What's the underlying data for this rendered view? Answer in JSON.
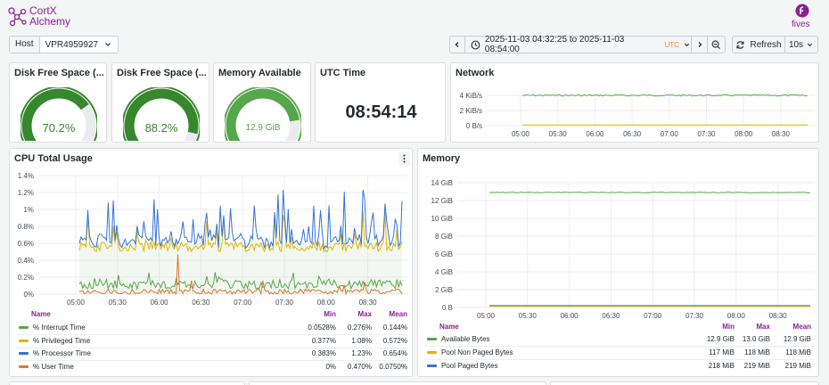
{
  "brand": {
    "left_logo_line1": "CortX",
    "left_logo_line2": "Alchemy",
    "right_logo": "fives",
    "colors": {
      "brand_purple": "#8a2092",
      "accent_orange": "#ff8833"
    }
  },
  "toolbar": {
    "host_label": "Host",
    "host_value": "VPR4959927",
    "time_range_text": "2025-11-03 04:32:25 to 2025-11-03 08:54:00",
    "timezone": "UTC",
    "refresh_label": "Refresh",
    "refresh_interval": "10s",
    "icons": [
      "chevron-left-icon",
      "clock-icon",
      "chevron-right-icon",
      "zoom-out-icon",
      "refresh-icon",
      "chevron-down-icon"
    ]
  },
  "panels": {
    "disk1": {
      "title": "Disk Free Space (...",
      "value": "70.2%",
      "fraction": 0.702,
      "color": "#37872d"
    },
    "disk2": {
      "title": "Disk Free Space (...",
      "value": "88.2%",
      "fraction": 0.882,
      "color": "#37872d"
    },
    "memory_available": {
      "title": "Memory Available",
      "value": "12.9 GiB",
      "fraction": 0.8,
      "color": "#56a64b"
    },
    "utc_time": {
      "title": "UTC Time",
      "value": "08:54:14"
    },
    "network": {
      "title": "Network",
      "y_ticks": [
        "4 KiB/s",
        "2 KiB/s",
        "0 B/s"
      ],
      "x_ticks": [
        "05:00",
        "05:30",
        "06:00",
        "06:30",
        "07:00",
        "07:30",
        "08:00",
        "08:30"
      ]
    },
    "cpu": {
      "title": "CPU Total Usage",
      "y_ticks": [
        "1.4%",
        "1.2%",
        "1%",
        "0.8%",
        "0.6%",
        "0.4%",
        "0.2%",
        "0%"
      ],
      "x_ticks": [
        "05:00",
        "05:30",
        "06:00",
        "06:30",
        "07:00",
        "07:30",
        "08:00",
        "08:30"
      ],
      "legend_headers": {
        "name": "Name",
        "min": "Min",
        "max": "Max",
        "mean": "Mean"
      },
      "legend": [
        {
          "name": "% Interrupt Time",
          "color": "#56a64b",
          "min": "0.0528%",
          "max": "0.276%",
          "mean": "0.144%"
        },
        {
          "name": "% Privileged Time",
          "color": "#e0b400",
          "min": "0.377%",
          "max": "1.08%",
          "mean": "0.572%"
        },
        {
          "name": "% Processor Time",
          "color": "#3274d9",
          "min": "0.383%",
          "max": "1.23%",
          "mean": "0.654%"
        },
        {
          "name": "% User Time",
          "color": "#e0752d",
          "min": "0%",
          "max": "0.470%",
          "mean": "0.0750%"
        }
      ]
    },
    "memory": {
      "title": "Memory",
      "y_ticks": [
        "14 GiB",
        "12 GiB",
        "10 GiB",
        "8 GiB",
        "6 GiB",
        "4 GiB",
        "2 GiB",
        "0 B"
      ],
      "x_ticks": [
        "05:00",
        "05:30",
        "06:00",
        "06:30",
        "07:00",
        "07:30",
        "08:00",
        "08:30"
      ],
      "legend_headers": {
        "name": "Name",
        "min": "Min",
        "max": "Max",
        "mean": "Mean"
      },
      "legend": [
        {
          "name": "Available Bytes",
          "color": "#56a64b",
          "min": "12.9 GiB",
          "max": "13.0 GiB",
          "mean": "12.9 GiB"
        },
        {
          "name": "Pool Non Paged Bytes",
          "color": "#e0b400",
          "min": "117 MiB",
          "max": "118 MiB",
          "mean": "118 MiB"
        },
        {
          "name": "Pool Paged Bytes",
          "color": "#3274d9",
          "min": "218 MiB",
          "max": "219 MiB",
          "mean": "219 MiB"
        }
      ]
    }
  },
  "chart_data": [
    {
      "type": "line",
      "panel": "network",
      "x_range": [
        "05:00",
        "08:30"
      ],
      "ylim": [
        0,
        4
      ],
      "series": [
        {
          "color": "#56a64b",
          "values_kib_s": [
            4.0,
            4.0
          ]
        },
        {
          "color": "#e0b400",
          "values_kib_s": [
            0.1,
            0.1
          ]
        }
      ]
    },
    {
      "type": "line",
      "panel": "cpu",
      "ylim": [
        0,
        1.4
      ],
      "series": [
        {
          "name": "% Interrupt Time",
          "min": 0.0528,
          "max": 0.276,
          "mean": 0.144
        },
        {
          "name": "% Privileged Time",
          "min": 0.377,
          "max": 1.08,
          "mean": 0.572
        },
        {
          "name": "% Processor Time",
          "min": 0.383,
          "max": 1.23,
          "mean": 0.654
        },
        {
          "name": "% User Time",
          "min": 0,
          "max": 0.47,
          "mean": 0.075
        }
      ]
    },
    {
      "type": "line",
      "panel": "memory",
      "ylim": [
        0,
        14
      ],
      "series": [
        {
          "name": "Available Bytes",
          "value_gib": 12.9
        },
        {
          "name": "Pool Non Paged Bytes",
          "value_gib": 0.115
        },
        {
          "name": "Pool Paged Bytes",
          "value_gib": 0.214
        }
      ]
    }
  ]
}
